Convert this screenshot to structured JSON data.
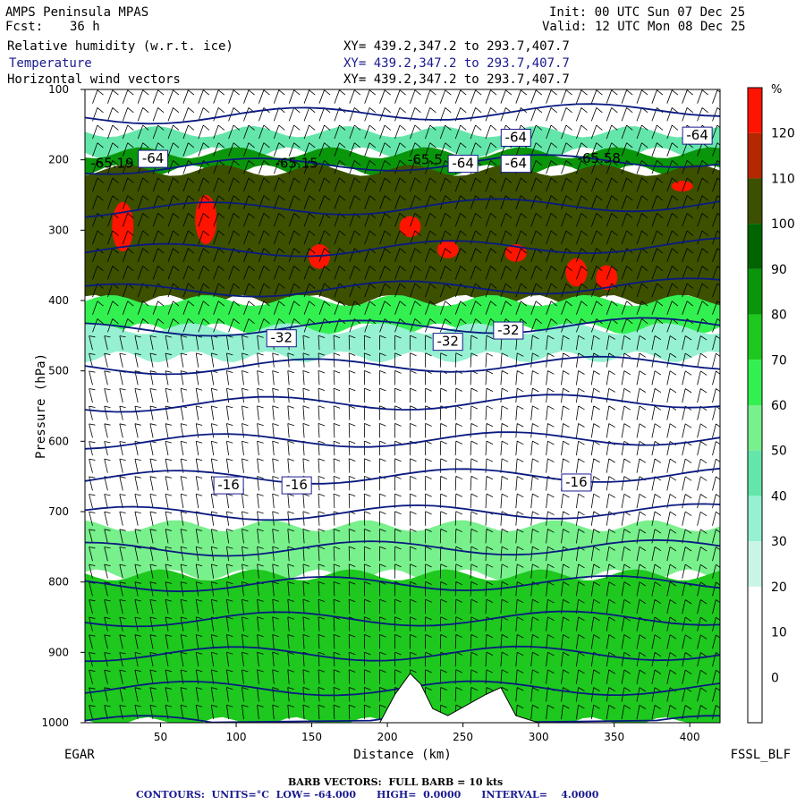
{
  "header": {
    "model": "AMPS Peninsula MPAS",
    "fcst_label": "Fcst:",
    "fcst_value": "36 h",
    "init": "Init: 00 UTC Sun 07 Dec 25",
    "valid": "Valid: 12 UTC Mon 08 Dec 25",
    "fields": [
      {
        "name": "Relative humidity (w.r.t. ice)",
        "xy": "XY= 439.2,347.2 to 293.7,407.7"
      },
      {
        "name": "Temperature",
        "xy": "XY= 439.2,347.2 to 293.7,407.7"
      },
      {
        "name": "Horizontal wind vectors",
        "xy": "XY= 439.2,347.2 to 293.7,407.7"
      }
    ]
  },
  "chart_data": {
    "type": "heatmap",
    "xlabel": "Distance (km)",
    "ylabel": "Pressure (hPa)",
    "xlim": [
      0,
      420
    ],
    "ylim": [
      1000,
      100
    ],
    "x_ticks": [
      50,
      100,
      150,
      200,
      250,
      300,
      350,
      400
    ],
    "y_ticks": [
      100,
      200,
      300,
      400,
      500,
      600,
      700,
      800,
      900,
      1000
    ],
    "left_endpoint": "EGAR",
    "right_endpoint": "FSSL_BLF",
    "colorbar": {
      "unit": "%",
      "levels": [
        0,
        10,
        20,
        30,
        40,
        50,
        60,
        70,
        80,
        90,
        100,
        110,
        120
      ],
      "colors": [
        "#ffffff",
        "#ffffff",
        "#ffffff",
        "#c8f5e6",
        "#96f0d2",
        "#64e6aa",
        "#78f08c",
        "#32f050",
        "#1ec81e",
        "#0a960a",
        "#006400",
        "#3c5000",
        "#b42800",
        "#ff1400"
      ]
    },
    "rh_layers": [
      {
        "p_top": 160,
        "p_bot": 190,
        "level": "moist",
        "color": "#64e6aa"
      },
      {
        "p_top": 190,
        "p_bot": 215,
        "level": "90-100",
        "color": "#0a960a"
      },
      {
        "p_top": 215,
        "p_bot": 400,
        "level": "100-110",
        "color": "#3c5000"
      },
      {
        "p_top": 400,
        "p_bot": 440,
        "level": "70-90",
        "color": "#32f050"
      },
      {
        "p_top": 440,
        "p_bot": 480,
        "level": "40-60",
        "color": "#96f0d2"
      },
      {
        "p_top": 720,
        "p_bot": 790,
        "level": "30-60",
        "color": "#78f08c"
      },
      {
        "p_top": 790,
        "p_bot": 1000,
        "level": "70-90",
        "color": "#1ec81e"
      }
    ],
    "temperature_contours": {
      "units": "°C",
      "low": -64.0,
      "high": 0.0,
      "interval": 4.0,
      "labels": [
        {
          "text": "-64",
          "x": 45,
          "p": 198
        },
        {
          "text": "-65.19",
          "x": 18,
          "p": 205
        },
        {
          "text": "-65.15",
          "x": 140,
          "p": 205
        },
        {
          "text": "-65.5",
          "x": 225,
          "p": 200
        },
        {
          "text": "-64",
          "x": 250,
          "p": 205
        },
        {
          "text": "-64",
          "x": 285,
          "p": 205
        },
        {
          "text": "-65.58",
          "x": 340,
          "p": 198
        },
        {
          "text": "-64",
          "x": 285,
          "p": 168
        },
        {
          "text": "-64",
          "x": 405,
          "p": 165
        },
        {
          "text": "-32",
          "x": 130,
          "p": 453
        },
        {
          "text": "-32",
          "x": 240,
          "p": 458
        },
        {
          "text": "-32",
          "x": 280,
          "p": 442
        },
        {
          "text": "-16",
          "x": 95,
          "p": 662
        },
        {
          "text": "-16",
          "x": 140,
          "p": 662
        },
        {
          "text": "-16",
          "x": 325,
          "p": 658
        }
      ]
    }
  },
  "footer": {
    "barb": "BARB VECTORS:  FULL BARB = 10 kts",
    "contours": "CONTOURS:  UNITS=°C  LOW= -64.000      HIGH=  0.0000      INTERVAL=    4.0000"
  }
}
